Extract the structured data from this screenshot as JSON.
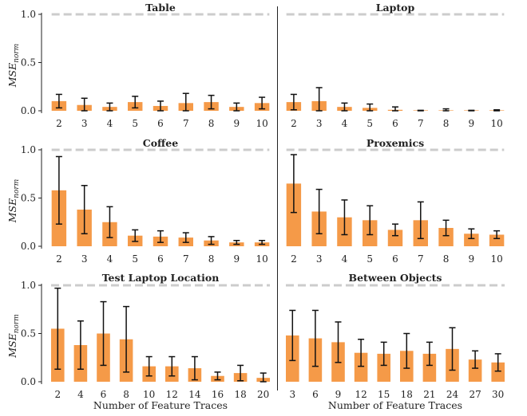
{
  "chart_data": [
    {
      "type": "bar",
      "title": "Table",
      "ylabel": "MSE",
      "ylabel_sub": "norm",
      "xlabel": "",
      "ylim": [
        0,
        1.05
      ],
      "yticks": [
        0.0,
        0.5,
        1.0
      ],
      "ytick_labels": [
        "0.0",
        "0.5",
        "1.0"
      ],
      "baseline": 1.0,
      "categories": [
        "2",
        "3",
        "4",
        "5",
        "6",
        "7",
        "8",
        "9",
        "10"
      ],
      "values": [
        0.1,
        0.06,
        0.04,
        0.09,
        0.05,
        0.08,
        0.09,
        0.04,
        0.08
      ],
      "errors": [
        0.07,
        0.07,
        0.04,
        0.06,
        0.05,
        0.1,
        0.07,
        0.04,
        0.06
      ]
    },
    {
      "type": "bar",
      "title": "Laptop",
      "ylabel": "",
      "xlabel": "",
      "ylim": [
        0,
        1.05
      ],
      "baseline": 1.0,
      "categories": [
        "2",
        "3",
        "4",
        "5",
        "6",
        "7",
        "8",
        "9",
        "10"
      ],
      "values": [
        0.09,
        0.1,
        0.04,
        0.03,
        0.01,
        0.0,
        0.0,
        0.0,
        0.0
      ],
      "errors": [
        0.08,
        0.14,
        0.04,
        0.04,
        0.03,
        0.005,
        0.02,
        0.005,
        0.01
      ]
    },
    {
      "type": "bar",
      "title": "Coffee",
      "ylabel": "MSE",
      "ylabel_sub": "norm",
      "xlabel": "",
      "ylim": [
        0,
        1.05
      ],
      "yticks": [
        0.0,
        0.5,
        1.0
      ],
      "ytick_labels": [
        "0.0",
        "0.5",
        "1.0"
      ],
      "baseline": 1.0,
      "categories": [
        "2",
        "3",
        "4",
        "5",
        "6",
        "7",
        "8",
        "9",
        "10"
      ],
      "values": [
        0.58,
        0.38,
        0.25,
        0.11,
        0.1,
        0.09,
        0.06,
        0.04,
        0.04
      ],
      "errors": [
        0.35,
        0.25,
        0.16,
        0.06,
        0.06,
        0.05,
        0.04,
        0.02,
        0.02
      ]
    },
    {
      "type": "bar",
      "title": "Proxemics",
      "ylabel": "",
      "xlabel": "",
      "ylim": [
        0,
        1.05
      ],
      "baseline": 1.0,
      "categories": [
        "2",
        "3",
        "4",
        "5",
        "6",
        "7",
        "8",
        "9",
        "10"
      ],
      "values": [
        0.65,
        0.36,
        0.3,
        0.27,
        0.17,
        0.27,
        0.19,
        0.13,
        0.12
      ],
      "errors": [
        0.3,
        0.23,
        0.18,
        0.15,
        0.06,
        0.19,
        0.08,
        0.05,
        0.04
      ]
    },
    {
      "type": "bar",
      "title": "Test Laptop Location",
      "ylabel": "MSE",
      "ylabel_sub": "norm",
      "xlabel": "Number of Feature Traces",
      "ylim": [
        0,
        1.05
      ],
      "yticks": [
        0.0,
        0.5,
        1.0
      ],
      "ytick_labels": [
        "0.0",
        "0.5",
        "1.0"
      ],
      "baseline": 1.0,
      "categories": [
        "2",
        "4",
        "6",
        "8",
        "10",
        "12",
        "14",
        "16",
        "18",
        "20"
      ],
      "values": [
        0.55,
        0.38,
        0.5,
        0.44,
        0.16,
        0.16,
        0.14,
        0.06,
        0.09,
        0.04
      ],
      "errors": [
        0.42,
        0.25,
        0.33,
        0.34,
        0.1,
        0.1,
        0.12,
        0.04,
        0.08,
        0.05
      ]
    },
    {
      "type": "bar",
      "title": "Between Objects",
      "ylabel": "",
      "xlabel": "Number of Feature Traces",
      "ylim": [
        0,
        1.05
      ],
      "baseline": 1.0,
      "categories": [
        "3",
        "6",
        "9",
        "12",
        "15",
        "18",
        "21",
        "24",
        "27",
        "30"
      ],
      "values": [
        0.48,
        0.45,
        0.41,
        0.3,
        0.29,
        0.32,
        0.29,
        0.34,
        0.23,
        0.2
      ],
      "errors": [
        0.26,
        0.29,
        0.21,
        0.14,
        0.12,
        0.18,
        0.12,
        0.22,
        0.09,
        0.09
      ]
    }
  ],
  "colors": {
    "bar": "#f59a48",
    "error_bar": "#111111",
    "baseline": "#cccccc",
    "axis": "#222222"
  }
}
